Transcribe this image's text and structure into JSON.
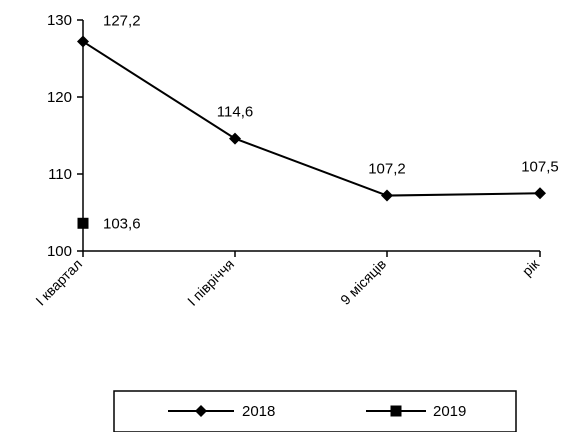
{
  "chart_data": {
    "type": "line",
    "categories": [
      "І квартал",
      "І півріччя",
      "9 місяців",
      "рік"
    ],
    "series": [
      {
        "name": "2018",
        "values": [
          127.2,
          114.6,
          107.2,
          107.5
        ],
        "labels": [
          "127,2",
          "114,6",
          "107,2",
          "107,5"
        ],
        "marker": "diamond",
        "color": "#000000"
      },
      {
        "name": "2019",
        "values": [
          103.6,
          null,
          null,
          null
        ],
        "labels": [
          "103,6",
          null,
          null,
          null
        ],
        "marker": "square",
        "color": "#000000"
      }
    ],
    "ylim": [
      100,
      130
    ],
    "yticks": [
      100,
      110,
      120,
      130
    ],
    "ytick_labels": [
      "100",
      "110",
      "120",
      "130"
    ],
    "grid": false,
    "legend_position": "bottom"
  }
}
